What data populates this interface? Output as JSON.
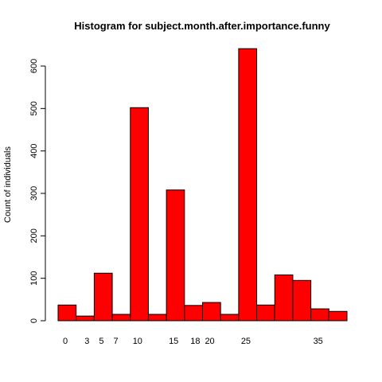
{
  "chart_data": {
    "type": "bar",
    "title": "Histogram for subject.month.after.importance.funny",
    "xlabel": "",
    "ylabel": "Count of individuals",
    "ylim": [
      0,
      660
    ],
    "y_ticks": [
      0,
      100,
      200,
      300,
      400,
      500,
      600
    ],
    "x_range": [
      -1,
      39
    ],
    "x_tick_labels": [
      {
        "label": "0",
        "x": 0
      },
      {
        "label": "3",
        "x": 3
      },
      {
        "label": "5",
        "x": 5
      },
      {
        "label": "7",
        "x": 7
      },
      {
        "label": "10",
        "x": 10
      },
      {
        "label": "15",
        "x": 15
      },
      {
        "label": "18",
        "x": 18
      },
      {
        "label": "20",
        "x": 20
      },
      {
        "label": "25",
        "x": 25
      },
      {
        "label": "35",
        "x": 35
      }
    ],
    "bins": [
      {
        "start": -1.0,
        "end": 1.5,
        "value": 37
      },
      {
        "start": 1.5,
        "end": 4.0,
        "value": 11
      },
      {
        "start": 4.0,
        "end": 6.5,
        "value": 112
      },
      {
        "start": 6.5,
        "end": 9.0,
        "value": 15
      },
      {
        "start": 9.0,
        "end": 11.5,
        "value": 502
      },
      {
        "start": 11.5,
        "end": 14.0,
        "value": 15
      },
      {
        "start": 14.0,
        "end": 16.5,
        "value": 308
      },
      {
        "start": 16.5,
        "end": 19.0,
        "value": 36
      },
      {
        "start": 19.0,
        "end": 21.5,
        "value": 43
      },
      {
        "start": 21.5,
        "end": 24.0,
        "value": 15
      },
      {
        "start": 24.0,
        "end": 26.5,
        "value": 641
      },
      {
        "start": 26.5,
        "end": 29.0,
        "value": 37
      },
      {
        "start": 29.0,
        "end": 31.5,
        "value": 108
      },
      {
        "start": 31.5,
        "end": 34.0,
        "value": 95
      },
      {
        "start": 34.0,
        "end": 36.5,
        "value": 28
      },
      {
        "start": 36.5,
        "end": 39.0,
        "value": 22
      }
    ],
    "bar_color": "#ff0000",
    "grid": false
  }
}
